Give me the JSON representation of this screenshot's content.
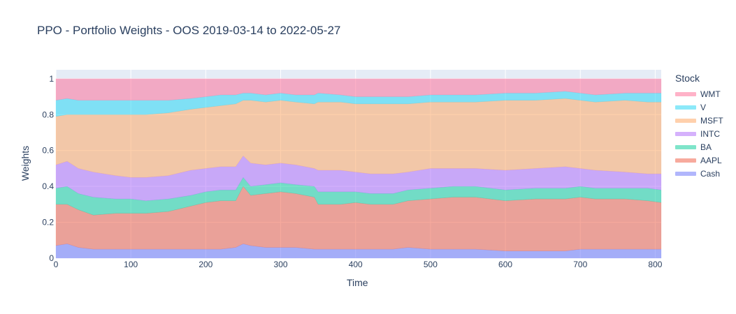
{
  "chart_data": {
    "type": "area",
    "stacked": true,
    "title": "PPO - Portfolio Weights - OOS 2019-03-14 to 2022-05-27",
    "xlabel": "Time",
    "ylabel": "Weights",
    "xlim": [
      0,
      808
    ],
    "ylim": [
      0,
      1.05
    ],
    "x_ticks": [
      0,
      100,
      200,
      300,
      400,
      500,
      600,
      700,
      800
    ],
    "x_tick_labels": [
      "0",
      "100",
      "200",
      "300",
      "400",
      "500",
      "600",
      "700",
      "800"
    ],
    "y_ticks": [
      0,
      0.2,
      0.4,
      0.6,
      0.8,
      1
    ],
    "y_tick_labels": [
      "0",
      "0.2",
      "0.4",
      "0.6",
      "0.8",
      "1"
    ],
    "grid": true,
    "legend_title": "Stock",
    "legend_position": "right",
    "x": [
      0,
      15,
      30,
      50,
      80,
      100,
      120,
      150,
      180,
      200,
      220,
      240,
      250,
      260,
      280,
      300,
      320,
      345,
      350,
      380,
      400,
      420,
      450,
      470,
      500,
      530,
      560,
      600,
      640,
      680,
      700,
      720,
      760,
      790,
      808
    ],
    "series": [
      {
        "name": "Cash",
        "color": "#636efa",
        "values": [
          0.07,
          0.08,
          0.06,
          0.05,
          0.05,
          0.05,
          0.05,
          0.05,
          0.05,
          0.05,
          0.05,
          0.06,
          0.08,
          0.07,
          0.06,
          0.06,
          0.06,
          0.05,
          0.05,
          0.05,
          0.05,
          0.05,
          0.05,
          0.06,
          0.05,
          0.05,
          0.05,
          0.04,
          0.04,
          0.04,
          0.05,
          0.05,
          0.05,
          0.05,
          0.05
        ]
      },
      {
        "name": "AAPL",
        "color": "#EF553B",
        "values": [
          0.23,
          0.22,
          0.21,
          0.19,
          0.2,
          0.2,
          0.2,
          0.21,
          0.24,
          0.26,
          0.27,
          0.26,
          0.32,
          0.28,
          0.3,
          0.31,
          0.3,
          0.29,
          0.25,
          0.25,
          0.26,
          0.25,
          0.25,
          0.26,
          0.28,
          0.29,
          0.29,
          0.28,
          0.29,
          0.29,
          0.29,
          0.28,
          0.28,
          0.27,
          0.26
        ]
      },
      {
        "name": "BA",
        "color": "#00cc96",
        "values": [
          0.09,
          0.1,
          0.09,
          0.1,
          0.08,
          0.08,
          0.07,
          0.07,
          0.06,
          0.06,
          0.06,
          0.06,
          0.05,
          0.05,
          0.05,
          0.05,
          0.05,
          0.06,
          0.07,
          0.07,
          0.06,
          0.06,
          0.06,
          0.06,
          0.06,
          0.06,
          0.06,
          0.06,
          0.06,
          0.06,
          0.06,
          0.06,
          0.06,
          0.07,
          0.07
        ]
      },
      {
        "name": "INTC",
        "color": "#ab63fa",
        "values": [
          0.13,
          0.14,
          0.14,
          0.14,
          0.13,
          0.12,
          0.13,
          0.13,
          0.14,
          0.13,
          0.13,
          0.13,
          0.12,
          0.13,
          0.11,
          0.11,
          0.11,
          0.1,
          0.12,
          0.12,
          0.11,
          0.11,
          0.11,
          0.1,
          0.11,
          0.1,
          0.1,
          0.11,
          0.11,
          0.12,
          0.1,
          0.1,
          0.09,
          0.08,
          0.09
        ]
      },
      {
        "name": "MSFT",
        "color": "#FFA15A",
        "values": [
          0.27,
          0.26,
          0.3,
          0.32,
          0.34,
          0.35,
          0.35,
          0.35,
          0.34,
          0.34,
          0.34,
          0.35,
          0.31,
          0.35,
          0.35,
          0.35,
          0.35,
          0.36,
          0.38,
          0.38,
          0.38,
          0.39,
          0.39,
          0.38,
          0.37,
          0.37,
          0.37,
          0.39,
          0.38,
          0.38,
          0.38,
          0.38,
          0.4,
          0.4,
          0.4
        ]
      },
      {
        "name": "V",
        "color": "#19d3f3",
        "values": [
          0.09,
          0.09,
          0.08,
          0.08,
          0.08,
          0.08,
          0.08,
          0.07,
          0.06,
          0.06,
          0.06,
          0.05,
          0.04,
          0.04,
          0.04,
          0.04,
          0.04,
          0.05,
          0.05,
          0.04,
          0.04,
          0.04,
          0.04,
          0.04,
          0.04,
          0.04,
          0.04,
          0.04,
          0.04,
          0.04,
          0.04,
          0.04,
          0.04,
          0.05,
          0.05
        ]
      },
      {
        "name": "WMT",
        "color": "#FF6692",
        "values": [
          0.12,
          0.11,
          0.12,
          0.12,
          0.12,
          0.12,
          0.12,
          0.12,
          0.11,
          0.1,
          0.09,
          0.09,
          0.08,
          0.08,
          0.09,
          0.08,
          0.09,
          0.09,
          0.08,
          0.09,
          0.1,
          0.1,
          0.1,
          0.1,
          0.09,
          0.09,
          0.09,
          0.08,
          0.08,
          0.07,
          0.08,
          0.09,
          0.08,
          0.08,
          0.08
        ]
      }
    ]
  }
}
